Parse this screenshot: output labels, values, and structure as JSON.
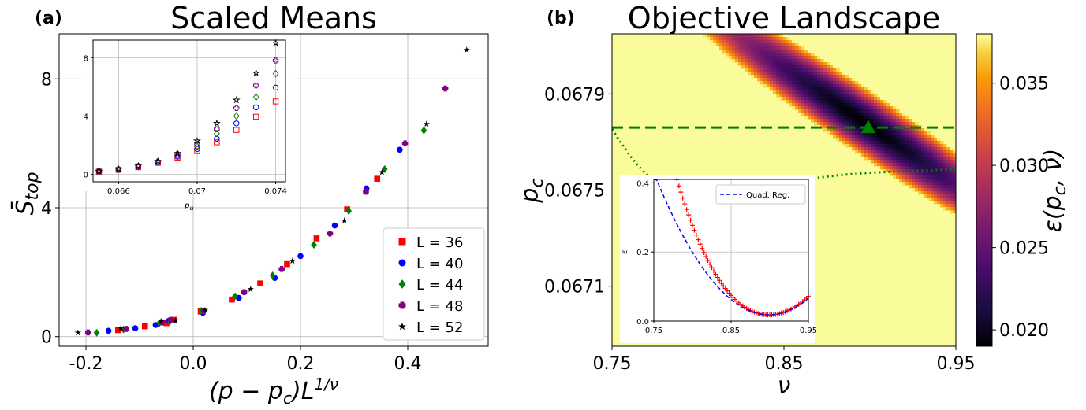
{
  "panel_a_label": "(a)",
  "panel_b_label": "(b)",
  "chart_data": [
    {
      "type": "scatter",
      "title": "Scaled Means",
      "xlabel": "(p − p_c)L^{1/ν}",
      "ylabel": "S̄_top",
      "xlim": [
        -0.25,
        0.55
      ],
      "ylim": [
        -0.3,
        9.4
      ],
      "xticks": [
        "-0.2",
        "0.0",
        "0.2",
        "0.4"
      ],
      "yticks": [
        "0",
        "4",
        "8"
      ],
      "grid": true,
      "legend_position": "lower-right",
      "series": [
        {
          "name": "L = 36",
          "color": "#ff0000",
          "marker": "square",
          "x": [
            -0.14,
            -0.09,
            -0.05,
            -0.036,
            0.014,
            0.072,
            0.125,
            0.175,
            0.23,
            0.287,
            0.343
          ],
          "y": [
            0.2,
            0.32,
            0.42,
            0.52,
            0.78,
            1.15,
            1.65,
            2.25,
            3.05,
            3.95,
            4.9
          ]
        },
        {
          "name": "L = 40",
          "color": "#0000ff",
          "marker": "circle",
          "x": [
            -0.158,
            -0.108,
            -0.07,
            -0.045,
            0.018,
            0.085,
            0.152,
            0.2,
            0.264,
            0.323,
            0.385
          ],
          "y": [
            0.18,
            0.26,
            0.36,
            0.5,
            0.74,
            1.2,
            1.82,
            2.5,
            3.45,
            4.6,
            5.8
          ]
        },
        {
          "name": "L = 44",
          "color": "#008000",
          "marker": "diamond",
          "x": [
            -0.18,
            -0.13,
            -0.063,
            -0.043,
            0.015,
            0.078,
            0.148,
            0.225,
            0.29,
            0.357,
            0.43
          ],
          "y": [
            0.12,
            0.22,
            0.42,
            0.48,
            0.8,
            1.25,
            1.9,
            2.85,
            3.9,
            5.2,
            6.4
          ]
        },
        {
          "name": "L = 48",
          "color": "#800080",
          "marker": "plus",
          "x": [
            -0.196,
            -0.125,
            -0.058,
            -0.042,
            0.02,
            0.095,
            0.165,
            0.255,
            0.322,
            0.395,
            0.47
          ],
          "y": [
            0.13,
            0.24,
            0.44,
            0.52,
            0.8,
            1.38,
            2.1,
            3.2,
            4.5,
            6.0,
            7.7
          ]
        },
        {
          "name": "L = 52",
          "color": "#000000",
          "marker": "star",
          "x": [
            -0.215,
            -0.135,
            -0.06,
            -0.033,
            0.022,
            0.107,
            0.185,
            0.282,
            0.352,
            0.435,
            0.51
          ],
          "y": [
            0.12,
            0.26,
            0.48,
            0.5,
            0.82,
            1.47,
            2.35,
            3.6,
            5.1,
            6.6,
            8.9
          ]
        }
      ],
      "inset": {
        "xlabel": "p_u",
        "xlim": [
          0.0647,
          0.0745
        ],
        "ylim": [
          -0.5,
          9.2
        ],
        "xticks": [
          "0.066",
          "0.07",
          "0.074"
        ],
        "yticks": [
          "0",
          "4",
          "8"
        ],
        "x": [
          0.065,
          0.066,
          0.067,
          0.068,
          0.069,
          0.07,
          0.071,
          0.072,
          0.073,
          0.074
        ],
        "series": [
          {
            "name": "L = 36",
            "y": [
              0.2,
              0.32,
              0.5,
              0.8,
              1.15,
              1.6,
              2.2,
              3.05,
              3.95,
              5.0
            ]
          },
          {
            "name": "L = 40",
            "y": [
              0.2,
              0.33,
              0.52,
              0.82,
              1.22,
              1.75,
              2.45,
              3.5,
              4.6,
              5.95
            ]
          },
          {
            "name": "L = 44",
            "y": [
              0.21,
              0.34,
              0.54,
              0.85,
              1.3,
              1.92,
              2.8,
              4.0,
              5.3,
              6.9
            ]
          },
          {
            "name": "L = 48",
            "y": [
              0.22,
              0.35,
              0.56,
              0.88,
              1.38,
              2.1,
              3.1,
              4.55,
              6.1,
              7.8
            ]
          },
          {
            "name": "L = 52",
            "y": [
              0.23,
              0.36,
              0.58,
              0.9,
              1.45,
              2.3,
              3.5,
              5.1,
              6.95,
              9.0
            ]
          }
        ]
      }
    },
    {
      "type": "heatmap",
      "title": "Objective Landscape",
      "xlabel": "ν",
      "ylabel": "p_c",
      "xlim": [
        0.75,
        0.95
      ],
      "ylim": [
        0.06685,
        0.06815
      ],
      "xticks": [
        "0.75",
        "0.85",
        "0.95"
      ],
      "yticks": [
        "0.0671",
        "0.0675",
        "0.0679"
      ],
      "colorbar": {
        "label": "ε(p_c, ν)",
        "min": 0.019,
        "max": 0.038,
        "ticks": [
          "0.020",
          "0.025",
          "0.030",
          "0.035"
        ],
        "colormap": "inferno"
      },
      "minimum": {
        "nu": 0.899,
        "pc": 0.06776,
        "marker": "triangle",
        "color": "#008000"
      },
      "valley": {
        "nu_center": 0.897,
        "pc_center": 0.06778,
        "slope_pc_per_nu": -0.0048,
        "across_halfwidth_pc": 0.00015,
        "along_halfwidth_nu": 0.085
      },
      "hline_pc": 0.06776,
      "inset": {
        "xlim": [
          0.75,
          0.95
        ],
        "ylim": [
          0.0,
          0.41
        ],
        "xticks": [
          "0.75",
          "0.85",
          "0.95"
        ],
        "yticks": [
          "0.0",
          "0.2",
          "0.4"
        ],
        "ylabel": "ε",
        "legend": "Quad. Reg.",
        "data_color": "#ff0000",
        "fit_color": "#0000ff",
        "minimum_nu": 0.899
      }
    }
  ]
}
